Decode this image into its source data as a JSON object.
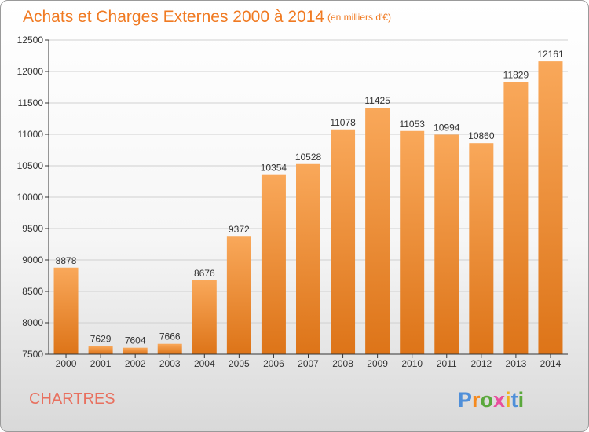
{
  "chart_data": {
    "type": "bar",
    "title": "Achats et Charges Externes 2000 à 2014",
    "subtitle": "(en milliers d'€)",
    "categories": [
      "2000",
      "2001",
      "2002",
      "2003",
      "2004",
      "2005",
      "2006",
      "2007",
      "2008",
      "2009",
      "2010",
      "2011",
      "2012",
      "2013",
      "2014"
    ],
    "values": [
      8878,
      7629,
      7604,
      7666,
      8676,
      9372,
      10354,
      10528,
      11078,
      11425,
      11053,
      10994,
      10860,
      11829,
      12161
    ],
    "ylim": [
      7500,
      12500
    ],
    "yticks": [
      7500,
      8000,
      8500,
      9000,
      9500,
      10000,
      10500,
      11000,
      11500,
      12000,
      12500
    ],
    "xlabel": "",
    "ylabel": "",
    "grid": true,
    "legend": "none"
  },
  "city": "CHARTRES",
  "brand": {
    "letters": [
      "P",
      "r",
      "o",
      "x",
      "i",
      "t",
      "i"
    ]
  },
  "colors": {
    "bar_light": "#f9a85a",
    "bar_dark": "#dd7418",
    "title": "#f07a22",
    "city": "#e8705f",
    "brand_letters": [
      "#4f8fd9",
      "#f58a1f",
      "#5aa83c",
      "#e84f9e",
      "#f1b21f",
      "#4f8fd9",
      "#5aa83c"
    ]
  }
}
